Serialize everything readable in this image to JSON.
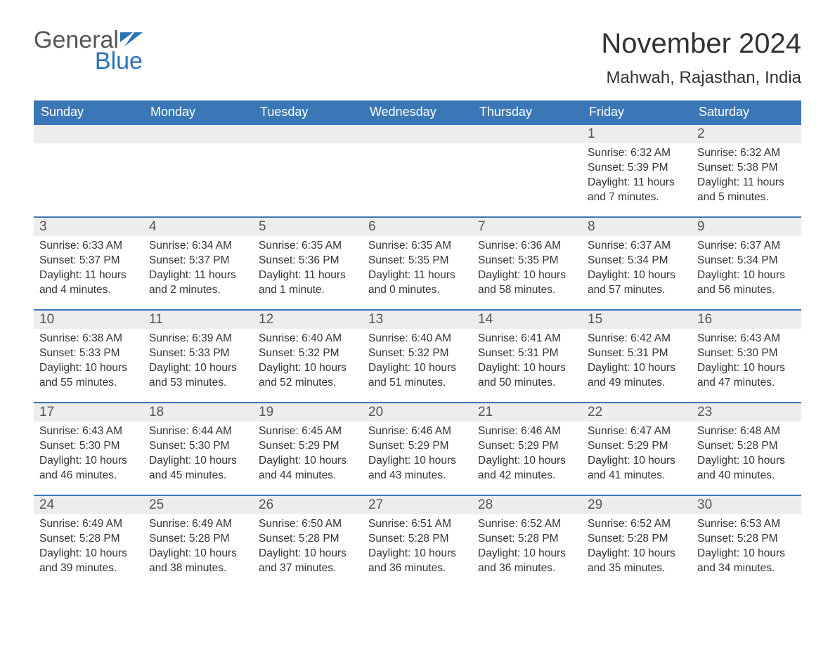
{
  "brand": {
    "word1": "General",
    "word2": "Blue",
    "logo_color": "#2b72b8"
  },
  "title": "November 2024",
  "location": "Mahwah, Rajasthan, India",
  "colors": {
    "header_bg": "#3b77b7",
    "header_text": "#ffffff",
    "daynum_bg": "#ededed",
    "divider": "#3b77b7",
    "body_text": "#333333"
  },
  "weekdays": [
    "Sunday",
    "Monday",
    "Tuesday",
    "Wednesday",
    "Thursday",
    "Friday",
    "Saturday"
  ],
  "weeks": [
    [
      null,
      null,
      null,
      null,
      null,
      {
        "n": "1",
        "sunrise": "Sunrise: 6:32 AM",
        "sunset": "Sunset: 5:39 PM",
        "daylight": "Daylight: 11 hours and 7 minutes."
      },
      {
        "n": "2",
        "sunrise": "Sunrise: 6:32 AM",
        "sunset": "Sunset: 5:38 PM",
        "daylight": "Daylight: 11 hours and 5 minutes."
      }
    ],
    [
      {
        "n": "3",
        "sunrise": "Sunrise: 6:33 AM",
        "sunset": "Sunset: 5:37 PM",
        "daylight": "Daylight: 11 hours and 4 minutes."
      },
      {
        "n": "4",
        "sunrise": "Sunrise: 6:34 AM",
        "sunset": "Sunset: 5:37 PM",
        "daylight": "Daylight: 11 hours and 2 minutes."
      },
      {
        "n": "5",
        "sunrise": "Sunrise: 6:35 AM",
        "sunset": "Sunset: 5:36 PM",
        "daylight": "Daylight: 11 hours and 1 minute."
      },
      {
        "n": "6",
        "sunrise": "Sunrise: 6:35 AM",
        "sunset": "Sunset: 5:35 PM",
        "daylight": "Daylight: 11 hours and 0 minutes."
      },
      {
        "n": "7",
        "sunrise": "Sunrise: 6:36 AM",
        "sunset": "Sunset: 5:35 PM",
        "daylight": "Daylight: 10 hours and 58 minutes."
      },
      {
        "n": "8",
        "sunrise": "Sunrise: 6:37 AM",
        "sunset": "Sunset: 5:34 PM",
        "daylight": "Daylight: 10 hours and 57 minutes."
      },
      {
        "n": "9",
        "sunrise": "Sunrise: 6:37 AM",
        "sunset": "Sunset: 5:34 PM",
        "daylight": "Daylight: 10 hours and 56 minutes."
      }
    ],
    [
      {
        "n": "10",
        "sunrise": "Sunrise: 6:38 AM",
        "sunset": "Sunset: 5:33 PM",
        "daylight": "Daylight: 10 hours and 55 minutes."
      },
      {
        "n": "11",
        "sunrise": "Sunrise: 6:39 AM",
        "sunset": "Sunset: 5:33 PM",
        "daylight": "Daylight: 10 hours and 53 minutes."
      },
      {
        "n": "12",
        "sunrise": "Sunrise: 6:40 AM",
        "sunset": "Sunset: 5:32 PM",
        "daylight": "Daylight: 10 hours and 52 minutes."
      },
      {
        "n": "13",
        "sunrise": "Sunrise: 6:40 AM",
        "sunset": "Sunset: 5:32 PM",
        "daylight": "Daylight: 10 hours and 51 minutes."
      },
      {
        "n": "14",
        "sunrise": "Sunrise: 6:41 AM",
        "sunset": "Sunset: 5:31 PM",
        "daylight": "Daylight: 10 hours and 50 minutes."
      },
      {
        "n": "15",
        "sunrise": "Sunrise: 6:42 AM",
        "sunset": "Sunset: 5:31 PM",
        "daylight": "Daylight: 10 hours and 49 minutes."
      },
      {
        "n": "16",
        "sunrise": "Sunrise: 6:43 AM",
        "sunset": "Sunset: 5:30 PM",
        "daylight": "Daylight: 10 hours and 47 minutes."
      }
    ],
    [
      {
        "n": "17",
        "sunrise": "Sunrise: 6:43 AM",
        "sunset": "Sunset: 5:30 PM",
        "daylight": "Daylight: 10 hours and 46 minutes."
      },
      {
        "n": "18",
        "sunrise": "Sunrise: 6:44 AM",
        "sunset": "Sunset: 5:30 PM",
        "daylight": "Daylight: 10 hours and 45 minutes."
      },
      {
        "n": "19",
        "sunrise": "Sunrise: 6:45 AM",
        "sunset": "Sunset: 5:29 PM",
        "daylight": "Daylight: 10 hours and 44 minutes."
      },
      {
        "n": "20",
        "sunrise": "Sunrise: 6:46 AM",
        "sunset": "Sunset: 5:29 PM",
        "daylight": "Daylight: 10 hours and 43 minutes."
      },
      {
        "n": "21",
        "sunrise": "Sunrise: 6:46 AM",
        "sunset": "Sunset: 5:29 PM",
        "daylight": "Daylight: 10 hours and 42 minutes."
      },
      {
        "n": "22",
        "sunrise": "Sunrise: 6:47 AM",
        "sunset": "Sunset: 5:29 PM",
        "daylight": "Daylight: 10 hours and 41 minutes."
      },
      {
        "n": "23",
        "sunrise": "Sunrise: 6:48 AM",
        "sunset": "Sunset: 5:28 PM",
        "daylight": "Daylight: 10 hours and 40 minutes."
      }
    ],
    [
      {
        "n": "24",
        "sunrise": "Sunrise: 6:49 AM",
        "sunset": "Sunset: 5:28 PM",
        "daylight": "Daylight: 10 hours and 39 minutes."
      },
      {
        "n": "25",
        "sunrise": "Sunrise: 6:49 AM",
        "sunset": "Sunset: 5:28 PM",
        "daylight": "Daylight: 10 hours and 38 minutes."
      },
      {
        "n": "26",
        "sunrise": "Sunrise: 6:50 AM",
        "sunset": "Sunset: 5:28 PM",
        "daylight": "Daylight: 10 hours and 37 minutes."
      },
      {
        "n": "27",
        "sunrise": "Sunrise: 6:51 AM",
        "sunset": "Sunset: 5:28 PM",
        "daylight": "Daylight: 10 hours and 36 minutes."
      },
      {
        "n": "28",
        "sunrise": "Sunrise: 6:52 AM",
        "sunset": "Sunset: 5:28 PM",
        "daylight": "Daylight: 10 hours and 36 minutes."
      },
      {
        "n": "29",
        "sunrise": "Sunrise: 6:52 AM",
        "sunset": "Sunset: 5:28 PM",
        "daylight": "Daylight: 10 hours and 35 minutes."
      },
      {
        "n": "30",
        "sunrise": "Sunrise: 6:53 AM",
        "sunset": "Sunset: 5:28 PM",
        "daylight": "Daylight: 10 hours and 34 minutes."
      }
    ]
  ]
}
